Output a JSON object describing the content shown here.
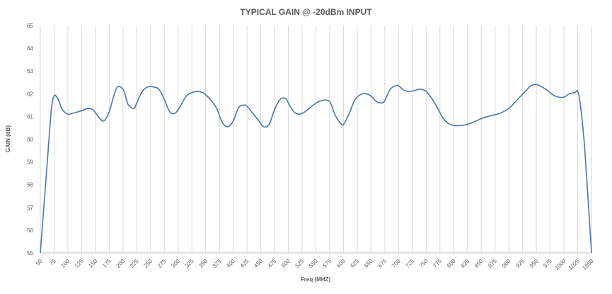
{
  "chart_data": {
    "type": "line",
    "title": "TYPICAL GAIN @ -20dBm INPUT",
    "xlabel": "Freq (MHZ)",
    "ylabel": "GAIN (dB)",
    "xlim": [
      50,
      1050
    ],
    "ylim": [
      55,
      65
    ],
    "x_ticks": [
      50,
      75,
      100,
      125,
      150,
      175,
      200,
      225,
      250,
      275,
      300,
      325,
      350,
      375,
      400,
      425,
      450,
      475,
      500,
      525,
      550,
      575,
      600,
      625,
      650,
      675,
      700,
      725,
      750,
      775,
      800,
      825,
      850,
      875,
      900,
      925,
      950,
      975,
      1000,
      1025,
      1050
    ],
    "y_ticks": [
      55,
      56,
      57,
      58,
      59,
      60,
      61,
      62,
      63,
      64,
      65
    ],
    "grid": "vertical",
    "line_color": "#4a76b0",
    "series": [
      {
        "x": [
          50,
          62,
          70,
          75,
          80,
          85,
          90,
          100,
          110,
          125,
          135,
          145,
          155,
          165,
          175,
          182,
          190,
          200,
          205,
          210,
          220,
          225,
          235,
          245,
          255,
          265,
          275,
          285,
          295,
          305,
          315,
          325,
          335,
          345,
          350,
          360,
          370,
          380,
          390,
          400,
          410,
          420,
          425,
          435,
          445,
          455,
          465,
          475,
          485,
          495,
          500,
          510,
          520,
          530,
          545,
          560,
          575,
          585,
          595,
          600,
          610,
          620,
          630,
          640,
          650,
          660,
          670,
          675,
          685,
          695,
          700,
          710,
          720,
          730,
          740,
          750,
          760,
          770,
          780,
          790,
          800,
          810,
          825,
          840,
          855,
          870,
          885,
          900,
          910,
          920,
          930,
          940,
          950,
          960,
          970,
          980,
          990,
          1000,
          1010,
          1020,
          1025,
          1030,
          1038,
          1050
        ],
        "y": [
          55.0,
          58.8,
          61.3,
          61.9,
          61.85,
          61.6,
          61.3,
          61.1,
          61.15,
          61.25,
          61.35,
          61.3,
          61.0,
          60.8,
          61.2,
          61.8,
          62.3,
          62.2,
          61.85,
          61.5,
          61.35,
          61.6,
          62.1,
          62.3,
          62.3,
          62.2,
          61.75,
          61.2,
          61.15,
          61.5,
          61.9,
          62.05,
          62.1,
          62.05,
          61.95,
          61.7,
          61.35,
          60.75,
          60.55,
          60.8,
          61.4,
          61.5,
          61.45,
          61.15,
          60.85,
          60.55,
          60.65,
          61.3,
          61.75,
          61.8,
          61.6,
          61.2,
          61.1,
          61.2,
          61.5,
          61.7,
          61.65,
          61.05,
          60.7,
          60.65,
          61.1,
          61.7,
          61.95,
          62.0,
          61.9,
          61.65,
          61.6,
          61.7,
          62.2,
          62.35,
          62.35,
          62.15,
          62.1,
          62.15,
          62.2,
          62.1,
          61.8,
          61.4,
          60.95,
          60.7,
          60.6,
          60.6,
          60.65,
          60.8,
          60.95,
          61.05,
          61.15,
          61.35,
          61.6,
          61.85,
          62.1,
          62.35,
          62.4,
          62.3,
          62.15,
          61.95,
          61.85,
          61.85,
          62.0,
          62.05,
          62.1,
          61.5,
          59.5,
          55.0
        ]
      }
    ]
  }
}
